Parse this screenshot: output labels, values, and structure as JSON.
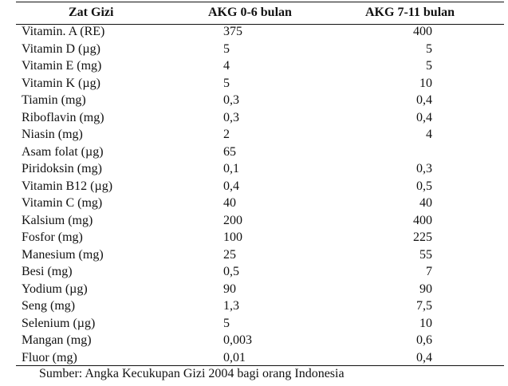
{
  "table": {
    "headers": [
      "Zat Gizi",
      "AKG 0-6 bulan",
      "AKG 7-11 bulan"
    ],
    "rows": [
      {
        "name": "Vitamin. A (RE)",
        "v1": "375",
        "v2": "400"
      },
      {
        "name": "Vitamin D (µg)",
        "v1": "5",
        "v2": "5"
      },
      {
        "name": "Vitamin E (mg)",
        "v1": "4",
        "v2": "5"
      },
      {
        "name": "Vitamin K (µg)",
        "v1": "5",
        "v2": "10"
      },
      {
        "name": "Tiamin (mg)",
        "v1": "0,3",
        "v2": "0,4"
      },
      {
        "name": "Riboflavin (mg)",
        "v1": "0,3",
        "v2": "0,4"
      },
      {
        "name": "Niasin (mg)",
        "v1": "2",
        "v2": "4"
      },
      {
        "name": "Asam folat (µg)",
        "v1": "65",
        "v2": ""
      },
      {
        "name": "Piridoksin (mg)",
        "v1": "0,1",
        "v2": "0,3"
      },
      {
        "name": "Vitamin B12 (µg)",
        "v1": "0,4",
        "v2": "0,5"
      },
      {
        "name": "Vitamin C (mg)",
        "v1": "40",
        "v2": "40"
      },
      {
        "name": "Kalsium (mg)",
        "v1": "200",
        "v2": "400"
      },
      {
        "name": "Fosfor (mg)",
        "v1": "100",
        "v2": "225"
      },
      {
        "name": "Manesium (mg)",
        "v1": "25",
        "v2": "55"
      },
      {
        "name": "Besi (mg)",
        "v1": "0,5",
        "v2": "7"
      },
      {
        "name": "Yodium (µg)",
        "v1": "90",
        "v2": "90"
      },
      {
        "name": "Seng (mg)",
        "v1": "1,3",
        "v2": "7,5"
      },
      {
        "name": "Selenium (µg)",
        "v1": "5",
        "v2": "10"
      },
      {
        "name": "Mangan (mg)",
        "v1": "0,003",
        "v2": "0,6"
      },
      {
        "name": "Fluor (mg)",
        "v1": "0,01",
        "v2": "0,4"
      }
    ]
  },
  "source": "Sumber: Angka Kecukupan Gizi 2004 bagi orang Indonesia"
}
